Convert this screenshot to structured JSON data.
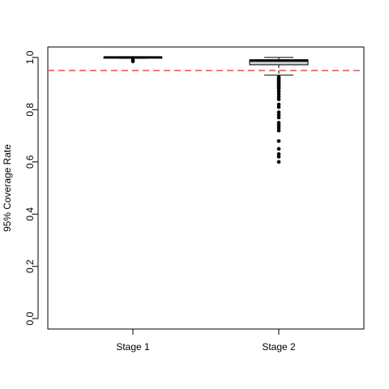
{
  "chart_data": {
    "type": "boxplot",
    "y_label": "95% Coverage Rate",
    "categories": [
      "Stage 1",
      "Stage 2"
    ],
    "boxes": [
      {
        "min": 0.997,
        "q1": 0.998,
        "median": 1.0,
        "q3": 1.0,
        "max": 1.0,
        "outliers": [
          0.99,
          0.985
        ]
      },
      {
        "min": 0.932,
        "q1": 0.972,
        "median": 0.988,
        "q3": 0.991,
        "max": 1.0,
        "outliers": [
          0.925,
          0.92,
          0.915,
          0.91,
          0.905,
          0.9,
          0.895,
          0.89,
          0.885,
          0.88,
          0.87,
          0.86,
          0.85,
          0.84,
          0.82,
          0.81,
          0.79,
          0.78,
          0.77,
          0.75,
          0.74,
          0.73,
          0.72,
          0.68,
          0.65,
          0.63,
          0.62,
          0.6
        ]
      }
    ],
    "box_color": "#d3d3d3",
    "reference_line": {
      "value": 0.95,
      "color": "#e05050"
    },
    "ylim": [
      -0.04,
      1.04
    ],
    "yticks": [
      {
        "value": 0,
        "label": "0.0"
      },
      0.2,
      0.4,
      0.6,
      0.8,
      {
        "value": 1,
        "label": "1.0"
      }
    ]
  }
}
